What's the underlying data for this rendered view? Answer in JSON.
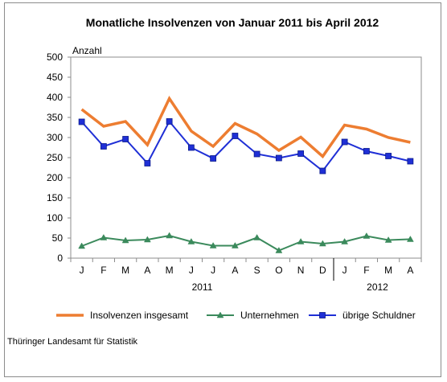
{
  "chart_data": {
    "type": "line",
    "title": "Monatliche Insolvenzen von Januar 2011 bis April 2012",
    "ylabel": "Anzahl",
    "ylim": [
      0,
      500
    ],
    "yticks": [
      0,
      50,
      100,
      150,
      200,
      250,
      300,
      350,
      400,
      450,
      500
    ],
    "categories": [
      "J",
      "F",
      "M",
      "A",
      "M",
      "J",
      "J",
      "A",
      "S",
      "O",
      "N",
      "D",
      "J",
      "F",
      "M",
      "A"
    ],
    "year_groups": [
      {
        "label": "2011",
        "start": 0,
        "end": 11
      },
      {
        "label": "2012",
        "start": 12,
        "end": 15
      }
    ],
    "series": [
      {
        "name": "Insolvenzen insgesamt",
        "color": "#ed7d31",
        "marker": "none",
        "values": [
          370,
          328,
          340,
          282,
          397,
          316,
          278,
          335,
          309,
          268,
          301,
          253,
          331,
          321,
          300,
          288
        ]
      },
      {
        "name": "Unternehmen",
        "color": "#3b8a5c",
        "marker": "triangle",
        "values": [
          30,
          51,
          44,
          46,
          56,
          41,
          31,
          31,
          51,
          19,
          41,
          36,
          41,
          55,
          45,
          47
        ]
      },
      {
        "name": "übrige Schuldner",
        "color": "#1f2fd6",
        "marker": "square",
        "values": [
          339,
          278,
          296,
          236,
          340,
          275,
          248,
          304,
          259,
          249,
          260,
          217,
          289,
          266,
          254,
          241
        ]
      }
    ],
    "legend_position": "bottom",
    "grid": false
  },
  "source": "Thüringer Landesamt für Statistik"
}
